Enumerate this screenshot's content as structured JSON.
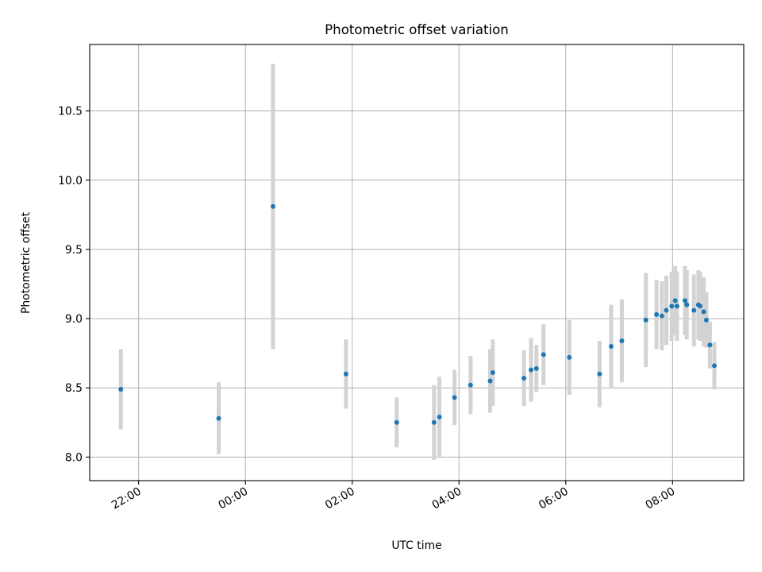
{
  "chart_data": {
    "type": "scatter",
    "title": "Photometric offset variation",
    "xlabel": "UTC time",
    "ylabel": "Photometric offset",
    "x_unit": "hours (UTC, clock time)",
    "xlim": [
      "21:05",
      "09:20"
    ],
    "ylim": [
      7.83,
      10.98
    ],
    "x_ticks": [
      "22:00",
      "00:00",
      "02:00",
      "04:00",
      "06:00",
      "08:00"
    ],
    "y_ticks": [
      "8.0",
      "8.5",
      "9.0",
      "9.5",
      "10.0",
      "10.5"
    ],
    "grid": true,
    "marker_color": "#1f77b4",
    "errorbar_color": "#d3d3d3",
    "series": [
      {
        "points": [
          {
            "time": "21:40",
            "y": 8.49,
            "err": 0.29
          },
          {
            "time": "23:30",
            "y": 8.28,
            "err": 0.26
          },
          {
            "time": "00:31",
            "y": 9.81,
            "err": 1.03
          },
          {
            "time": "01:53",
            "y": 8.6,
            "err": 0.25
          },
          {
            "time": "02:50",
            "y": 8.25,
            "err": 0.18
          },
          {
            "time": "03:32",
            "y": 8.25,
            "err": 0.27
          },
          {
            "time": "03:38",
            "y": 8.29,
            "err": 0.29
          },
          {
            "time": "03:55",
            "y": 8.43,
            "err": 0.2
          },
          {
            "time": "04:13",
            "y": 8.52,
            "err": 0.21
          },
          {
            "time": "04:35",
            "y": 8.55,
            "err": 0.23
          },
          {
            "time": "04:38",
            "y": 8.61,
            "err": 0.24
          },
          {
            "time": "05:13",
            "y": 8.57,
            "err": 0.2
          },
          {
            "time": "05:21",
            "y": 8.63,
            "err": 0.23
          },
          {
            "time": "05:27",
            "y": 8.64,
            "err": 0.17
          },
          {
            "time": "05:35",
            "y": 8.74,
            "err": 0.22
          },
          {
            "time": "06:04",
            "y": 8.72,
            "err": 0.27
          },
          {
            "time": "06:38",
            "y": 8.6,
            "err": 0.24
          },
          {
            "time": "06:51",
            "y": 8.8,
            "err": 0.3
          },
          {
            "time": "07:03",
            "y": 8.84,
            "err": 0.3
          },
          {
            "time": "07:30",
            "y": 8.99,
            "err": 0.34
          },
          {
            "time": "07:42",
            "y": 9.03,
            "err": 0.25
          },
          {
            "time": "07:48",
            "y": 9.02,
            "err": 0.25
          },
          {
            "time": "07:53",
            "y": 9.06,
            "err": 0.25
          },
          {
            "time": "07:59",
            "y": 9.09,
            "err": 0.25
          },
          {
            "time": "08:03",
            "y": 9.13,
            "err": 0.25
          },
          {
            "time": "08:05",
            "y": 9.09,
            "err": 0.25
          },
          {
            "time": "08:14",
            "y": 9.13,
            "err": 0.25
          },
          {
            "time": "08:16",
            "y": 9.1,
            "err": 0.25
          },
          {
            "time": "08:24",
            "y": 9.06,
            "err": 0.26
          },
          {
            "time": "08:29",
            "y": 9.1,
            "err": 0.25
          },
          {
            "time": "08:31",
            "y": 9.09,
            "err": 0.25
          },
          {
            "time": "08:35",
            "y": 9.05,
            "err": 0.25
          },
          {
            "time": "08:38",
            "y": 8.99,
            "err": 0.2
          },
          {
            "time": "08:42",
            "y": 8.81,
            "err": 0.17
          },
          {
            "time": "08:47",
            "y": 8.66,
            "err": 0.17
          }
        ]
      }
    ]
  }
}
